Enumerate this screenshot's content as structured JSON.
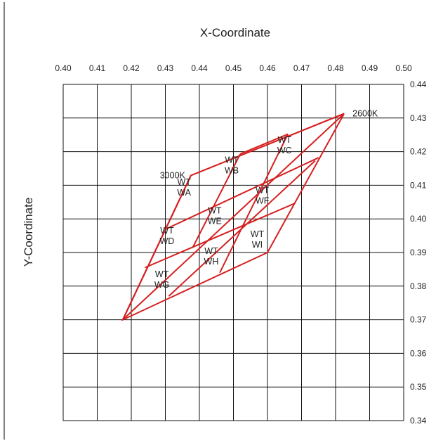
{
  "chart_data": {
    "type": "scatter",
    "title": "X-Coordinate",
    "xlabel": "X-Coordinate",
    "ylabel": "Y-Coordinate",
    "xlim": [
      0.4,
      0.5
    ],
    "ylim": [
      0.34,
      0.44
    ],
    "x_ticks": [
      "0.40",
      "0.41",
      "0.42",
      "0.43",
      "0.44",
      "0.45",
      "0.46",
      "0.47",
      "0.48",
      "0.49",
      "0.50"
    ],
    "y_ticks": [
      "0.44",
      "0.43",
      "0.42",
      "0.41",
      "0.40",
      "0.39",
      "0.38",
      "0.37",
      "0.36",
      "0.35",
      "0.34"
    ],
    "grid": true,
    "bin_line_color": "#d62020",
    "cct_labels": [
      {
        "text": "2600K",
        "x": 0.4825,
        "y": 0.4313
      },
      {
        "text": "3000K",
        "x": 0.4375,
        "y": 0.4129
      }
    ],
    "bin_lines": [
      {
        "x": [
          0.4375,
          0.4825,
          0.4175,
          0.4375
        ],
        "y": [
          0.4129,
          0.4313,
          0.37,
          0.4129
        ]
      },
      {
        "x": [
          0.4825,
          0.4375,
          0.4175
        ],
        "y": [
          0.4313,
          0.4129,
          0.37
        ]
      },
      {
        "x": [
          0.4375,
          0.4175,
          0.46,
          0.4825
        ],
        "y": [
          0.4129,
          0.37,
          0.39,
          0.4313
        ]
      },
      {
        "x": [
          0.43,
          0.475
        ],
        "y": [
          0.3969,
          0.4182
        ]
      },
      {
        "x": [
          0.424,
          0.468
        ],
        "y": [
          0.3855,
          0.4046
        ]
      },
      {
        "x": [
          0.431,
          0.474
        ],
        "y": [
          0.377,
          0.4173
        ]
      },
      {
        "x": [
          0.452,
          0.466
        ],
        "y": [
          0.4193,
          0.4252
        ]
      },
      {
        "x": [
          0.438,
          0.452
        ],
        "y": [
          0.3914,
          0.4193
        ]
      },
      {
        "x": [
          0.446,
          0.466
        ],
        "y": [
          0.384,
          0.4252
        ]
      }
    ],
    "bins": [
      {
        "name": "WT\nWC",
        "lines": [
          "WT",
          "WC"
        ],
        "x": 0.465,
        "y": 0.422
      },
      {
        "name": "WT\nWB",
        "lines": [
          "WT",
          "WB"
        ],
        "x": 0.4495,
        "y": 0.416
      },
      {
        "name": "WT\nWA",
        "lines": [
          "WT",
          "WA"
        ],
        "x": 0.4355,
        "y": 0.4095
      },
      {
        "name": "WT\nWF",
        "lines": [
          "WT",
          "WF"
        ],
        "x": 0.4585,
        "y": 0.407
      },
      {
        "name": "WT\nWE",
        "lines": [
          "WT",
          "WE"
        ],
        "x": 0.4445,
        "y": 0.401
      },
      {
        "name": "WT\nWD",
        "lines": [
          "WT",
          "WD"
        ],
        "x": 0.4305,
        "y": 0.395
      },
      {
        "name": "WT\nWI",
        "lines": [
          "WT",
          "WI"
        ],
        "x": 0.457,
        "y": 0.394
      },
      {
        "name": "WT\nWH",
        "lines": [
          "WT",
          "WH"
        ],
        "x": 0.4435,
        "y": 0.389
      },
      {
        "name": "WT\nWG",
        "lines": [
          "WT",
          "WG"
        ],
        "x": 0.429,
        "y": 0.382
      }
    ]
  }
}
